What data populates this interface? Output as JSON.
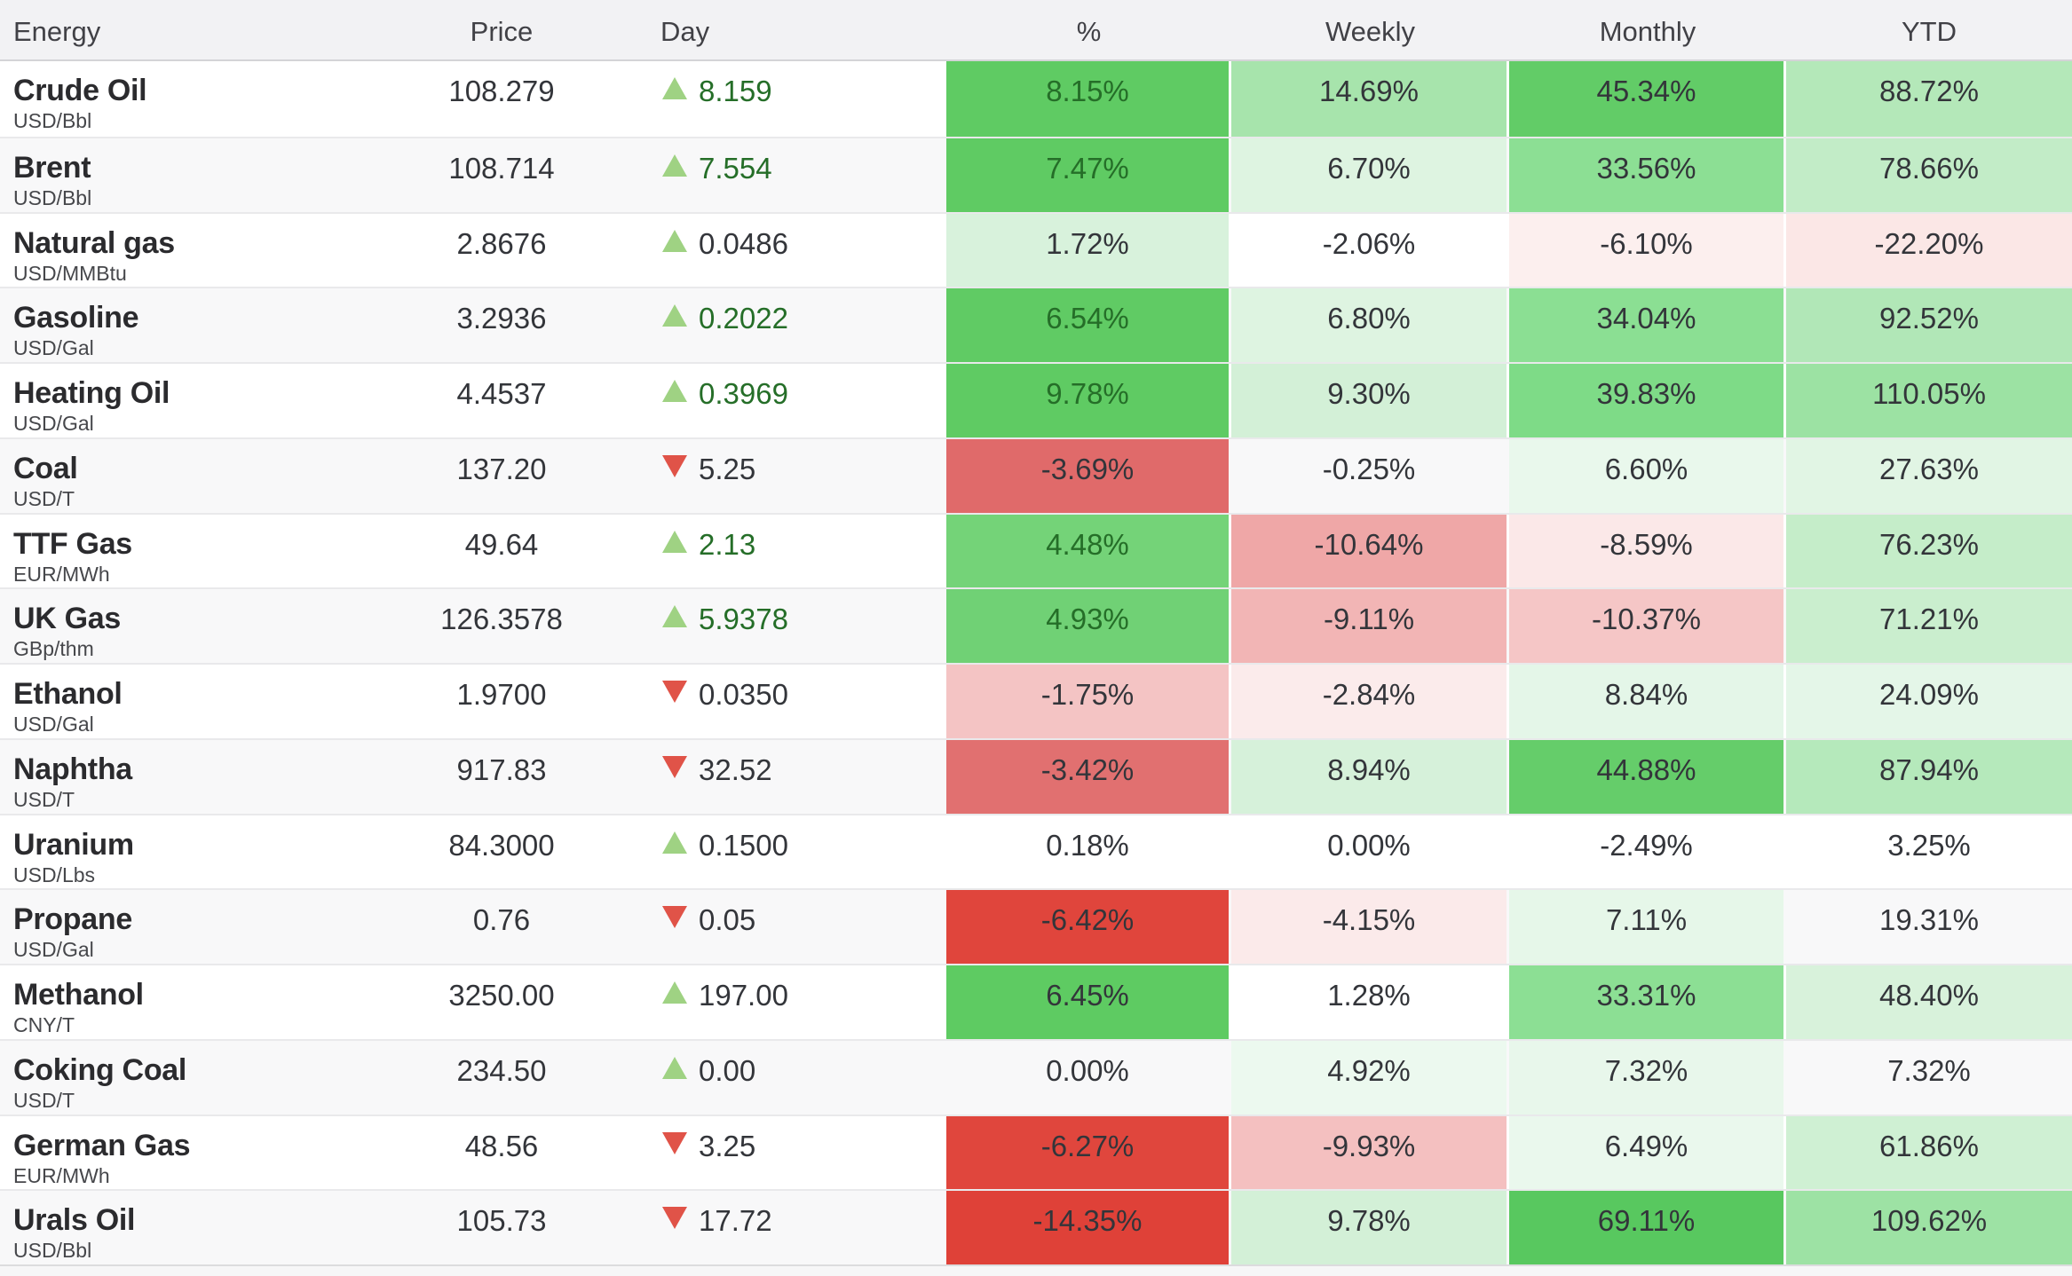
{
  "header": {
    "energy": "Energy",
    "price": "Price",
    "day": "Day",
    "pct": "%",
    "weekly": "Weekly",
    "monthly": "Monthly",
    "ytd": "YTD"
  },
  "palette": {
    "up_triangle": "#9fd283",
    "down_triangle": "#e05348",
    "green_value_text": "#256e28",
    "default_value_text": "#33353a",
    "strong_green": "#5fcb63",
    "strong_red": "#e0453c",
    "header_bg": "#f2f2f4",
    "alt_row_bg": "#f8f8f9"
  },
  "rows": [
    {
      "name": "Crude Oil",
      "unit": "USD/Bbl",
      "price": "108.279",
      "direction": "up",
      "day": "8.159",
      "day_green": true,
      "pct": {
        "v": "8.15%",
        "bg": "#5fcb63",
        "green_text": true
      },
      "weekly": {
        "v": "14.69%",
        "bg": "#a7e4ac"
      },
      "monthly": {
        "v": "45.34%",
        "bg": "#62cc67"
      },
      "ytd": {
        "v": "88.72%",
        "bg": "#b4e8b9"
      }
    },
    {
      "name": "Brent",
      "unit": "USD/Bbl",
      "price": "108.714",
      "direction": "up",
      "day": "7.554",
      "day_green": true,
      "pct": {
        "v": "7.47%",
        "bg": "#5fcb63",
        "green_text": true
      },
      "weekly": {
        "v": "6.70%",
        "bg": "#def4e1"
      },
      "monthly": {
        "v": "33.56%",
        "bg": "#8cdf94"
      },
      "ytd": {
        "v": "78.66%",
        "bg": "#c2ecc7"
      }
    },
    {
      "name": "Natural gas",
      "unit": "USD/MMBtu",
      "price": "2.8676",
      "direction": "up",
      "day": "0.0486",
      "day_green": false,
      "pct": {
        "v": "1.72%",
        "bg": "#d8f2dc"
      },
      "weekly": {
        "v": "-2.06%",
        "bg": ""
      },
      "monthly": {
        "v": "-6.10%",
        "bg": "#fcefee"
      },
      "ytd": {
        "v": "-22.20%",
        "bg": "#fbe7e6"
      }
    },
    {
      "name": "Gasoline",
      "unit": "USD/Gal",
      "price": "3.2936",
      "direction": "up",
      "day": "0.2022",
      "day_green": true,
      "pct": {
        "v": "6.54%",
        "bg": "#60cb64",
        "green_text": true
      },
      "weekly": {
        "v": "6.80%",
        "bg": "#def4e1"
      },
      "monthly": {
        "v": "34.04%",
        "bg": "#8bdf93"
      },
      "ytd": {
        "v": "92.52%",
        "bg": "#b1e7b7"
      }
    },
    {
      "name": "Heating Oil",
      "unit": "USD/Gal",
      "price": "4.4537",
      "direction": "up",
      "day": "0.3969",
      "day_green": true,
      "pct": {
        "v": "9.78%",
        "bg": "#5fcb63",
        "green_text": true
      },
      "weekly": {
        "v": "9.30%",
        "bg": "#d3f0d7"
      },
      "monthly": {
        "v": "39.83%",
        "bg": "#7edb87"
      },
      "ytd": {
        "v": "110.05%",
        "bg": "#9ce2a3"
      }
    },
    {
      "name": "Coal",
      "unit": "USD/T",
      "price": "137.20",
      "direction": "down",
      "day": "5.25",
      "day_green": false,
      "pct": {
        "v": "-3.69%",
        "bg": "#e06a6a"
      },
      "weekly": {
        "v": "-0.25%",
        "bg": ""
      },
      "monthly": {
        "v": "6.60%",
        "bg": "#e9f8ec"
      },
      "ytd": {
        "v": "27.63%",
        "bg": "#e1f5e4"
      }
    },
    {
      "name": "TTF Gas",
      "unit": "EUR/MWh",
      "price": "49.64",
      "direction": "up",
      "day": "2.13",
      "day_green": true,
      "pct": {
        "v": "4.48%",
        "bg": "#74d378",
        "green_text": true
      },
      "weekly": {
        "v": "-10.64%",
        "bg": "#efa7a7"
      },
      "monthly": {
        "v": "-8.59%",
        "bg": "#fbe8e8"
      },
      "ytd": {
        "v": "76.23%",
        "bg": "#c5edc9"
      }
    },
    {
      "name": "UK Gas",
      "unit": "GBp/thm",
      "price": "126.3578",
      "direction": "up",
      "day": "5.9378",
      "day_green": true,
      "pct": {
        "v": "4.93%",
        "bg": "#70d175",
        "green_text": true
      },
      "weekly": {
        "v": "-9.11%",
        "bg": "#f2b5b5"
      },
      "monthly": {
        "v": "-10.37%",
        "bg": "#f5c6c6"
      },
      "ytd": {
        "v": "71.21%",
        "bg": "#caeece"
      }
    },
    {
      "name": "Ethanol",
      "unit": "USD/Gal",
      "price": "1.9700",
      "direction": "down",
      "day": "0.0350",
      "day_green": false,
      "pct": {
        "v": "-1.75%",
        "bg": "#f4c4c4"
      },
      "weekly": {
        "v": "-2.84%",
        "bg": "#fbebeb"
      },
      "monthly": {
        "v": "8.84%",
        "bg": "#e4f6e8"
      },
      "ytd": {
        "v": "24.09%",
        "bg": "#e4f6e8"
      }
    },
    {
      "name": "Naphtha",
      "unit": "USD/T",
      "price": "917.83",
      "direction": "down",
      "day": "32.52",
      "day_green": false,
      "pct": {
        "v": "-3.42%",
        "bg": "#e17070"
      },
      "weekly": {
        "v": "8.94%",
        "bg": "#d6f1da"
      },
      "monthly": {
        "v": "44.88%",
        "bg": "#65cd6a"
      },
      "ytd": {
        "v": "87.94%",
        "bg": "#b5e9bb"
      }
    },
    {
      "name": "Uranium",
      "unit": "USD/Lbs",
      "price": "84.3000",
      "direction": "up",
      "day": "0.1500",
      "day_green": false,
      "pct": {
        "v": "0.18%",
        "bg": ""
      },
      "weekly": {
        "v": "0.00%",
        "bg": ""
      },
      "monthly": {
        "v": "-2.49%",
        "bg": ""
      },
      "ytd": {
        "v": "3.25%",
        "bg": ""
      }
    },
    {
      "name": "Propane",
      "unit": "USD/Gal",
      "price": "0.76",
      "direction": "down",
      "day": "0.05",
      "day_green": false,
      "pct": {
        "v": "-6.42%",
        "bg": "#e0453c"
      },
      "weekly": {
        "v": "-4.15%",
        "bg": "#fbeaea"
      },
      "monthly": {
        "v": "7.11%",
        "bg": "#e6f7e9"
      },
      "ytd": {
        "v": "19.31%",
        "bg": ""
      }
    },
    {
      "name": "Methanol",
      "unit": "CNY/T",
      "price": "3250.00",
      "direction": "up",
      "day": "197.00",
      "day_green": false,
      "pct": {
        "v": "6.45%",
        "bg": "#5ecb62"
      },
      "weekly": {
        "v": "1.28%",
        "bg": ""
      },
      "monthly": {
        "v": "33.31%",
        "bg": "#8cdf94"
      },
      "ytd": {
        "v": "48.40%",
        "bg": "#d8f2db"
      }
    },
    {
      "name": "Coking Coal",
      "unit": "USD/T",
      "price": "234.50",
      "direction": "up",
      "day": "0.00",
      "day_green": false,
      "pct": {
        "v": "0.00%",
        "bg": ""
      },
      "weekly": {
        "v": "4.92%",
        "bg": "#ecf9ef"
      },
      "monthly": {
        "v": "7.32%",
        "bg": "#e8f7eb"
      },
      "ytd": {
        "v": "7.32%",
        "bg": ""
      }
    },
    {
      "name": "German Gas",
      "unit": "EUR/MWh",
      "price": "48.56",
      "direction": "down",
      "day": "3.25",
      "day_green": false,
      "pct": {
        "v": "-6.27%",
        "bg": "#e0463d"
      },
      "weekly": {
        "v": "-9.93%",
        "bg": "#f4c0c0"
      },
      "monthly": {
        "v": "6.49%",
        "bg": "#eaf8ed"
      },
      "ytd": {
        "v": "61.86%",
        "bg": "#cff0d3"
      }
    },
    {
      "name": "Urals Oil",
      "unit": "USD/Bbl",
      "price": "105.73",
      "direction": "down",
      "day": "17.72",
      "day_green": false,
      "pct": {
        "v": "-14.35%",
        "bg": "#df4138"
      },
      "weekly": {
        "v": "9.78%",
        "bg": "#d3f0d7"
      },
      "monthly": {
        "v": "69.11%",
        "bg": "#58c85f"
      },
      "ytd": {
        "v": "109.62%",
        "bg": "#9de2a4"
      }
    }
  ]
}
